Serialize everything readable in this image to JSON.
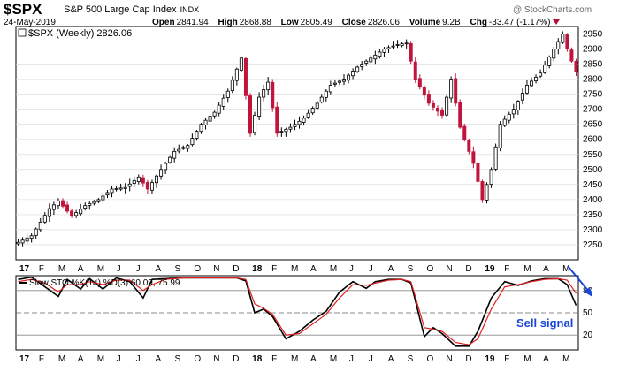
{
  "header": {
    "ticker": "$SPX",
    "name": "S&P 500 Large Cap Index",
    "exchange": "INDX",
    "date": "24-May-2019",
    "open_label": "Open",
    "open": "2841.94",
    "high_label": "High",
    "high": "2868.88",
    "low_label": "Low",
    "low": "2805.49",
    "close_label": "Close",
    "close": "2826.06",
    "volume_label": "Volume",
    "volume": "9.2B",
    "chg_label": "Chg",
    "chg": "-33.47 (-1.17%)",
    "watermark": "@ StockCharts.com"
  },
  "colors": {
    "up": "#000000",
    "down": "#c0143c",
    "k_line": "#000000",
    "d_line": "#e02020",
    "grid": "#d8d8d8",
    "arrow": "#1a46d8",
    "annotation": "#1a46d8"
  },
  "chart_data": [
    {
      "type": "candlestick",
      "legend": "$SPX (Weekly) 2826.06",
      "legend_position": "top-left",
      "y_axis_side": "right",
      "ylim": [
        2200,
        2975
      ],
      "yticks": [
        2250,
        2300,
        2350,
        2400,
        2450,
        2500,
        2550,
        2600,
        2650,
        2700,
        2750,
        2800,
        2850,
        2900,
        2950
      ],
      "month_labels": [
        "17",
        "F",
        "M",
        "A",
        "M",
        "J",
        "J",
        "A",
        "S",
        "O",
        "N",
        "D",
        "18",
        "F",
        "M",
        "A",
        "M",
        "J",
        "J",
        "A",
        "S",
        "O",
        "N",
        "D",
        "19",
        "F",
        "M",
        "A",
        "M"
      ],
      "grid": true,
      "week_count": 126,
      "anchors": [
        [
          0,
          2258
        ],
        [
          3,
          2280
        ],
        [
          7,
          2370
        ],
        [
          9,
          2395
        ],
        [
          12,
          2345
        ],
        [
          15,
          2380
        ],
        [
          18,
          2400
        ],
        [
          21,
          2435
        ],
        [
          24,
          2440
        ],
        [
          27,
          2475
        ],
        [
          29,
          2435
        ],
        [
          32,
          2500
        ],
        [
          35,
          2560
        ],
        [
          38,
          2580
        ],
        [
          41,
          2650
        ],
        [
          44,
          2690
        ],
        [
          47,
          2760
        ],
        [
          50,
          2870
        ],
        [
          52,
          2620
        ],
        [
          54,
          2740
        ],
        [
          56,
          2790
        ],
        [
          58,
          2620
        ],
        [
          61,
          2640
        ],
        [
          64,
          2670
        ],
        [
          67,
          2720
        ],
        [
          70,
          2780
        ],
        [
          73,
          2800
        ],
        [
          76,
          2840
        ],
        [
          79,
          2870
        ],
        [
          82,
          2900
        ],
        [
          85,
          2915
        ],
        [
          87,
          2920
        ],
        [
          89,
          2800
        ],
        [
          92,
          2720
        ],
        [
          95,
          2680
        ],
        [
          97,
          2800
        ],
        [
          99,
          2640
        ],
        [
          102,
          2520
        ],
        [
          104,
          2400
        ],
        [
          106,
          2500
        ],
        [
          108,
          2650
        ],
        [
          111,
          2700
        ],
        [
          114,
          2780
        ],
        [
          117,
          2820
        ],
        [
          120,
          2900
        ],
        [
          122,
          2950
        ],
        [
          123,
          2900
        ],
        [
          124,
          2860
        ],
        [
          125,
          2826
        ]
      ]
    },
    {
      "type": "line",
      "legend": "Slow STO %K(14) %D(3) 60.09, 75.99",
      "legend_position": "top-left",
      "y_axis_side": "right",
      "ylim": [
        0,
        100
      ],
      "yticks": [
        20,
        50,
        80
      ],
      "reference_lines": [
        20,
        50,
        80
      ],
      "month_labels": [
        "17",
        "F",
        "M",
        "A",
        "M",
        "J",
        "J",
        "A",
        "S",
        "O",
        "N",
        "D",
        "18",
        "F",
        "M",
        "A",
        "M",
        "J",
        "J",
        "A",
        "S",
        "O",
        "N",
        "D",
        "19",
        "F",
        "M",
        "A",
        "M"
      ],
      "series": [
        {
          "anchors": [
            [
              0,
              95
            ],
            [
              3,
              98
            ],
            [
              6,
              85
            ],
            [
              9,
              72
            ],
            [
              11,
              95
            ],
            [
              14,
              82
            ],
            [
              16,
              96
            ],
            [
              19,
              82
            ],
            [
              22,
              97
            ],
            [
              25,
              92
            ],
            [
              28,
              70
            ],
            [
              30,
              95
            ],
            [
              33,
              96
            ],
            [
              37,
              97
            ],
            [
              41,
              97
            ],
            [
              45,
              97
            ],
            [
              49,
              97
            ],
            [
              51,
              93
            ],
            [
              53,
              50
            ],
            [
              55,
              55
            ],
            [
              57,
              45
            ],
            [
              60,
              15
            ],
            [
              63,
              25
            ],
            [
              66,
              40
            ],
            [
              69,
              52
            ],
            [
              72,
              78
            ],
            [
              75,
              92
            ],
            [
              78,
              83
            ],
            [
              80,
              92
            ],
            [
              83,
              95
            ],
            [
              86,
              95
            ],
            [
              88,
              90
            ],
            [
              91,
              18
            ],
            [
              93,
              30
            ],
            [
              95,
              22
            ],
            [
              98,
              5
            ],
            [
              101,
              5
            ],
            [
              103,
              25
            ],
            [
              106,
              70
            ],
            [
              109,
              92
            ],
            [
              112,
              87
            ],
            [
              115,
              93
            ],
            [
              118,
              96
            ],
            [
              121,
              96
            ],
            [
              123,
              88
            ],
            [
              125,
              60
            ]
          ]
        },
        {
          "anchors": [
            [
              0,
              92
            ],
            [
              3,
              95
            ],
            [
              6,
              90
            ],
            [
              9,
              78
            ],
            [
              11,
              88
            ],
            [
              14,
              88
            ],
            [
              16,
              92
            ],
            [
              19,
              88
            ],
            [
              22,
              94
            ],
            [
              25,
              94
            ],
            [
              28,
              80
            ],
            [
              30,
              88
            ],
            [
              33,
              95
            ],
            [
              37,
              97
            ],
            [
              41,
              97
            ],
            [
              45,
              97
            ],
            [
              49,
              97
            ],
            [
              51,
              95
            ],
            [
              53,
              62
            ],
            [
              55,
              56
            ],
            [
              57,
              48
            ],
            [
              60,
              20
            ],
            [
              63,
              22
            ],
            [
              66,
              35
            ],
            [
              69,
              48
            ],
            [
              72,
              70
            ],
            [
              75,
              88
            ],
            [
              78,
              87
            ],
            [
              80,
              90
            ],
            [
              83,
              94
            ],
            [
              86,
              95
            ],
            [
              88,
              92
            ],
            [
              91,
              30
            ],
            [
              93,
              28
            ],
            [
              95,
              25
            ],
            [
              98,
              10
            ],
            [
              101,
              7
            ],
            [
              103,
              15
            ],
            [
              106,
              55
            ],
            [
              109,
              85
            ],
            [
              112,
              88
            ],
            [
              115,
              92
            ],
            [
              118,
              95
            ],
            [
              121,
              96
            ],
            [
              123,
              94
            ],
            [
              125,
              76
            ]
          ]
        }
      ]
    }
  ],
  "annotation": {
    "text": "Sell signal"
  }
}
